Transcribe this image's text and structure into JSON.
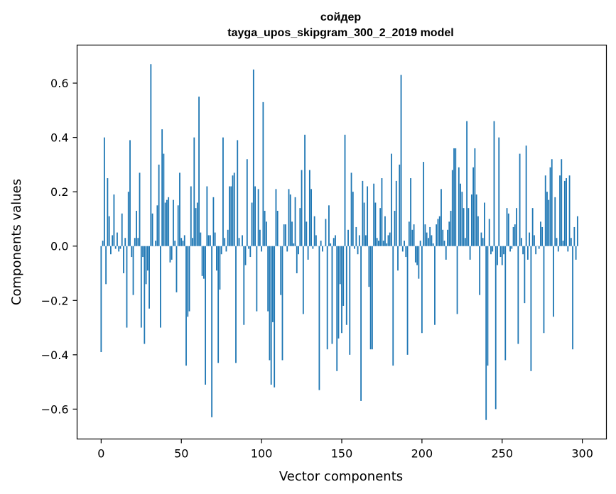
{
  "chart_data": {
    "type": "bar",
    "title": "сойдер",
    "subtitle": "tayga_upos_skipgram_300_2_2019 model",
    "xlabel": "Vector components",
    "ylabel": "Components values",
    "xlim": [
      -15,
      315
    ],
    "ylim": [
      -0.71,
      0.74
    ],
    "xticks": [
      0,
      50,
      100,
      150,
      200,
      250,
      300
    ],
    "yticks": [
      -0.6,
      -0.4,
      -0.2,
      0.0,
      0.2,
      0.4,
      0.6
    ],
    "ytick_labels": [
      "−0.6",
      "−0.4",
      "−0.2",
      "0.0",
      "0.2",
      "0.4",
      "0.6"
    ],
    "bar_color": "#1f77b4",
    "grid": false,
    "values": [
      -0.39,
      0.02,
      0.4,
      -0.14,
      0.25,
      0.11,
      -0.03,
      0.04,
      0.19,
      -0.01,
      0.05,
      -0.02,
      -0.01,
      0.12,
      -0.1,
      0.03,
      -0.3,
      0.2,
      0.39,
      -0.04,
      -0.18,
      0.03,
      0.13,
      0.03,
      0.27,
      -0.3,
      -0.04,
      -0.36,
      -0.14,
      -0.09,
      -0.23,
      0.67,
      0.12,
      0.0,
      0.02,
      0.15,
      0.3,
      -0.3,
      0.43,
      0.34,
      0.16,
      0.17,
      0.18,
      -0.06,
      -0.05,
      0.17,
      0.02,
      -0.17,
      0.15,
      0.27,
      0.03,
      0.02,
      0.04,
      -0.44,
      -0.26,
      -0.24,
      0.22,
      0.03,
      0.4,
      0.14,
      0.16,
      0.55,
      0.05,
      -0.11,
      -0.12,
      -0.51,
      0.22,
      0.04,
      0.04,
      -0.63,
      0.18,
      0.05,
      -0.09,
      -0.43,
      -0.16,
      -0.03,
      0.4,
      0.03,
      -0.02,
      0.06,
      0.22,
      0.22,
      0.26,
      0.27,
      -0.43,
      0.39,
      0.03,
      0.0,
      0.04,
      -0.29,
      -0.07,
      0.32,
      -0.01,
      -0.04,
      0.16,
      0.65,
      0.22,
      -0.24,
      0.21,
      0.06,
      -0.02,
      0.53,
      0.13,
      0.09,
      -0.24,
      -0.42,
      -0.51,
      -0.28,
      -0.52,
      0.21,
      0.13,
      0.0,
      -0.18,
      -0.42,
      0.08,
      0.08,
      -0.02,
      0.21,
      0.19,
      0.09,
      0.01,
      0.18,
      -0.1,
      -0.03,
      0.14,
      0.28,
      -0.25,
      0.41,
      0.09,
      -0.05,
      0.28,
      0.21,
      -0.01,
      0.11,
      0.04,
      0.0,
      -0.53,
      0.02,
      -0.02,
      0.0,
      0.1,
      -0.38,
      0.15,
      0.01,
      -0.36,
      0.03,
      0.04,
      -0.46,
      -0.34,
      -0.14,
      -0.32,
      -0.22,
      0.41,
      -0.29,
      0.06,
      -0.4,
      0.27,
      0.2,
      -0.01,
      0.07,
      -0.03,
      0.04,
      -0.57,
      0.24,
      0.16,
      0.04,
      0.22,
      -0.15,
      -0.38,
      -0.38,
      0.23,
      0.16,
      0.03,
      0.02,
      0.14,
      0.25,
      0.02,
      0.11,
      0.01,
      0.04,
      0.05,
      0.34,
      -0.44,
      0.13,
      0.24,
      -0.09,
      0.3,
      0.63,
      -0.02,
      0.02,
      -0.04,
      -0.4,
      0.09,
      0.25,
      0.06,
      0.08,
      -0.06,
      -0.07,
      -0.12,
      0.02,
      -0.32,
      0.31,
      0.08,
      0.05,
      0.03,
      0.07,
      0.04,
      0.01,
      -0.29,
      0.08,
      0.1,
      0.11,
      0.21,
      0.06,
      0.02,
      -0.05,
      0.06,
      0.09,
      0.13,
      0.28,
      0.36,
      0.36,
      -0.25,
      0.29,
      0.23,
      0.2,
      0.14,
      0.03,
      0.46,
      0.14,
      -0.05,
      0.19,
      0.29,
      0.36,
      0.19,
      0.11,
      -0.18,
      0.05,
      0.03,
      0.16,
      -0.64,
      -0.44,
      0.1,
      -0.03,
      -0.02,
      0.46,
      -0.6,
      -0.07,
      0.4,
      -0.04,
      -0.07,
      -0.03,
      -0.42,
      0.14,
      0.12,
      -0.02,
      -0.01,
      0.07,
      0.08,
      0.14,
      -0.36,
      0.34,
      0.03,
      -0.03,
      -0.21,
      0.37,
      -0.05,
      0.05,
      -0.46,
      0.14,
      0.04,
      -0.03,
      0.0,
      -0.01,
      0.09,
      0.07,
      -0.32,
      0.26,
      0.2,
      0.17,
      0.29,
      0.32,
      -0.26,
      0.18,
      0.03,
      -0.02,
      0.26,
      0.32,
      0.02,
      0.24,
      0.25,
      -0.02,
      0.26,
      0.03,
      -0.38,
      0.07,
      -0.05,
      0.11
    ]
  }
}
